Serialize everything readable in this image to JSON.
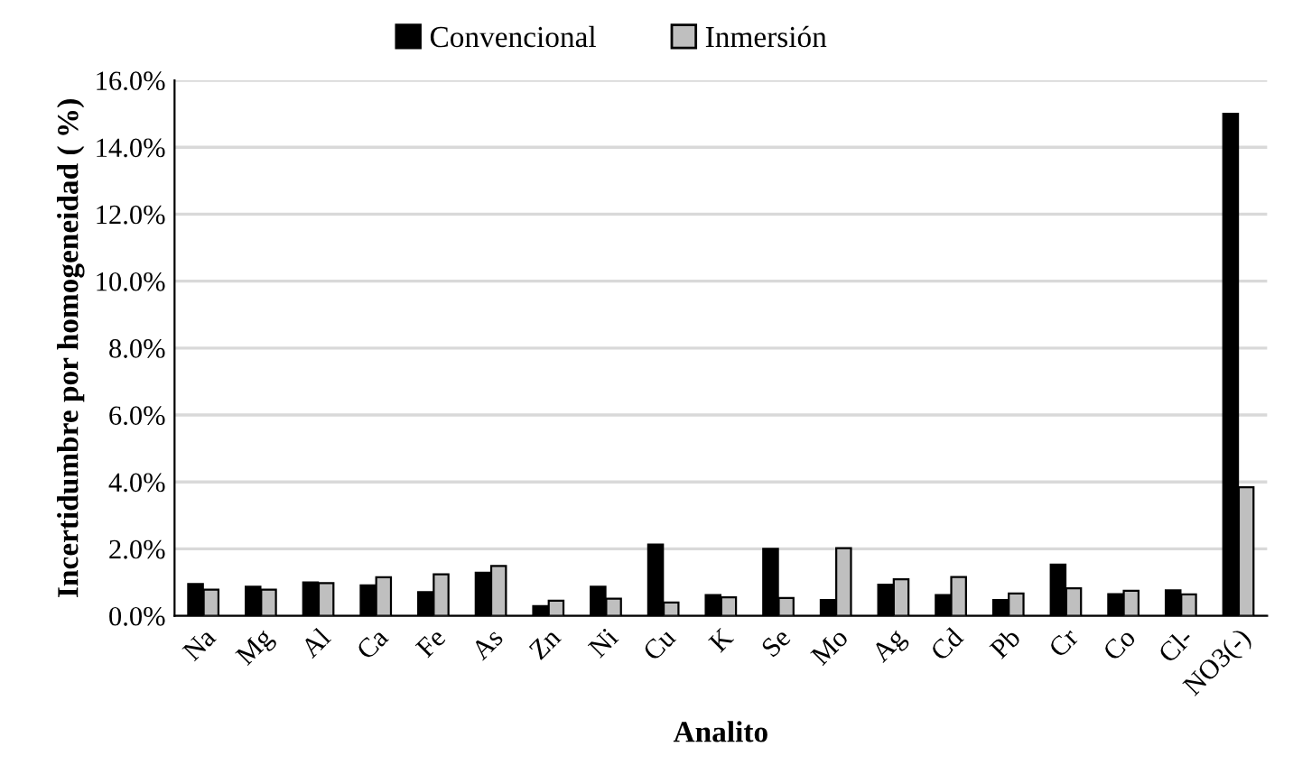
{
  "chart_data": {
    "type": "bar",
    "xlabel": "Analito",
    "ylabel": "Incertidumbre por homogeneidad ( %)",
    "categories": [
      "Na",
      "Mg",
      "Al",
      "Ca",
      "Fe",
      "As",
      "Zn",
      "Ni",
      "Cu",
      "K",
      "Se",
      "Mo",
      "Ag",
      "Cd",
      "Pb",
      "Cr",
      "Co",
      "Cl-",
      "NO3(-)"
    ],
    "series": [
      {
        "name": "Convencional",
        "color": "#000000",
        "values": [
          0.95,
          0.87,
          1.0,
          0.91,
          0.71,
          1.29,
          0.29,
          0.87,
          2.13,
          0.62,
          2.0,
          0.47,
          0.93,
          0.62,
          0.47,
          1.53,
          0.65,
          0.76,
          15.0
        ]
      },
      {
        "name": "Inmersión",
        "color": "#bfbfbf",
        "values": [
          0.78,
          0.78,
          0.98,
          1.15,
          1.24,
          1.49,
          0.45,
          0.51,
          0.4,
          0.55,
          0.53,
          2.02,
          1.09,
          1.16,
          0.67,
          0.82,
          0.75,
          0.64,
          3.84
        ]
      }
    ],
    "ylim": [
      0,
      16
    ],
    "yticks": [
      {
        "value": 0,
        "label": "0.0%"
      },
      {
        "value": 2,
        "label": "2.0%"
      },
      {
        "value": 4,
        "label": "4.0%"
      },
      {
        "value": 6,
        "label": "6.0%"
      },
      {
        "value": 8,
        "label": "8.0%"
      },
      {
        "value": 10,
        "label": "10.0%"
      },
      {
        "value": 12,
        "label": "12.0%"
      },
      {
        "value": 14,
        "label": "14.0%"
      },
      {
        "value": 16,
        "label": "16.0%"
      }
    ],
    "grid": "y",
    "legend": "top"
  }
}
